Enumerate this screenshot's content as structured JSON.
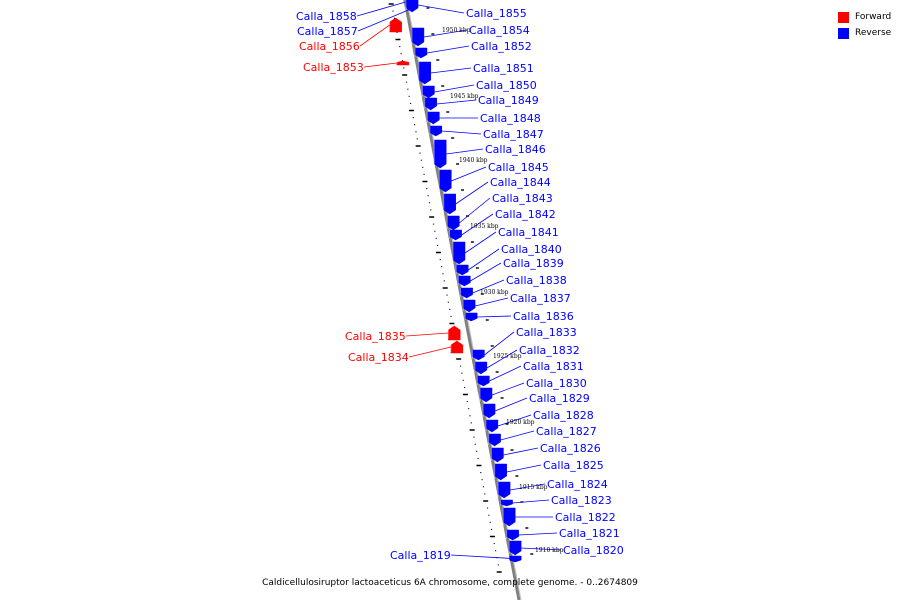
{
  "caption": "Caldicellulosiruptor lactoaceticus 6A chromosome, complete genome. - 0..2674809",
  "legend": [
    {
      "label": "Forward",
      "color": "#ff0000"
    },
    {
      "label": "Reverse",
      "color": "#0000ff"
    }
  ],
  "colors": {
    "forward": "#ff0000",
    "reverse": "#0000ff",
    "backbone": "#808080"
  },
  "kbp_ticks": [
    {
      "label": "1950 kbp"
    },
    {
      "label": "1945 kbp"
    },
    {
      "label": "1940 kbp"
    },
    {
      "label": "1935 kbp"
    },
    {
      "label": "1930 kbp"
    },
    {
      "label": "1925 kbp"
    },
    {
      "label": "1920 kbp"
    },
    {
      "label": "1915 kbp"
    },
    {
      "label": "1910 kbp"
    }
  ],
  "genes": [
    {
      "name": "Calla_1858",
      "strand": "reverse"
    },
    {
      "name": "Calla_1857",
      "strand": "reverse"
    },
    {
      "name": "Calla_1856",
      "strand": "forward"
    },
    {
      "name": "Calla_1855",
      "strand": "reverse"
    },
    {
      "name": "Calla_1854",
      "strand": "reverse"
    },
    {
      "name": "Calla_1853",
      "strand": "forward"
    },
    {
      "name": "Calla_1852",
      "strand": "reverse"
    },
    {
      "name": "Calla_1851",
      "strand": "reverse"
    },
    {
      "name": "Calla_1850",
      "strand": "reverse"
    },
    {
      "name": "Calla_1849",
      "strand": "reverse"
    },
    {
      "name": "Calla_1848",
      "strand": "reverse"
    },
    {
      "name": "Calla_1847",
      "strand": "reverse"
    },
    {
      "name": "Calla_1846",
      "strand": "reverse"
    },
    {
      "name": "Calla_1845",
      "strand": "reverse"
    },
    {
      "name": "Calla_1844",
      "strand": "reverse"
    },
    {
      "name": "Calla_1843",
      "strand": "reverse"
    },
    {
      "name": "Calla_1842",
      "strand": "reverse"
    },
    {
      "name": "Calla_1841",
      "strand": "reverse"
    },
    {
      "name": "Calla_1840",
      "strand": "reverse"
    },
    {
      "name": "Calla_1839",
      "strand": "reverse"
    },
    {
      "name": "Calla_1838",
      "strand": "reverse"
    },
    {
      "name": "Calla_1837",
      "strand": "reverse"
    },
    {
      "name": "Calla_1836",
      "strand": "reverse"
    },
    {
      "name": "Calla_1835",
      "strand": "forward"
    },
    {
      "name": "Calla_1834",
      "strand": "forward"
    },
    {
      "name": "Calla_1833",
      "strand": "reverse"
    },
    {
      "name": "Calla_1832",
      "strand": "reverse"
    },
    {
      "name": "Calla_1831",
      "strand": "reverse"
    },
    {
      "name": "Calla_1830",
      "strand": "reverse"
    },
    {
      "name": "Calla_1829",
      "strand": "reverse"
    },
    {
      "name": "Calla_1828",
      "strand": "reverse"
    },
    {
      "name": "Calla_1827",
      "strand": "reverse"
    },
    {
      "name": "Calla_1826",
      "strand": "reverse"
    },
    {
      "name": "Calla_1825",
      "strand": "reverse"
    },
    {
      "name": "Calla_1824",
      "strand": "reverse"
    },
    {
      "name": "Calla_1823",
      "strand": "reverse"
    },
    {
      "name": "Calla_1822",
      "strand": "reverse"
    },
    {
      "name": "Calla_1821",
      "strand": "reverse"
    },
    {
      "name": "Calla_1820",
      "strand": "reverse"
    },
    {
      "name": "Calla_1819",
      "strand": "reverse"
    }
  ]
}
